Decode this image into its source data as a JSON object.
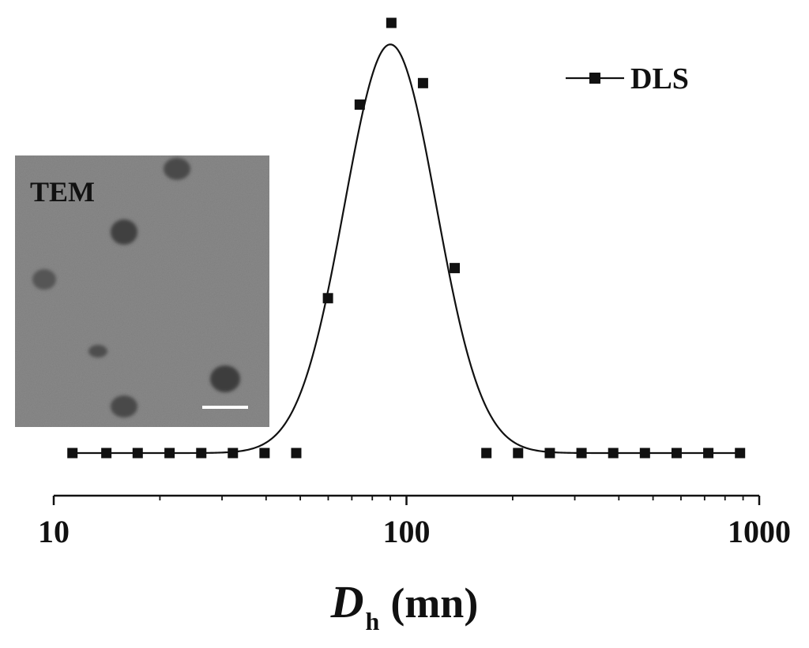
{
  "chart_data": {
    "type": "scatter",
    "xscale": "log",
    "xlim": [
      10,
      1000
    ],
    "xticks": [
      "10",
      "100",
      "1000"
    ],
    "xlabel": {
      "symbol": "D",
      "subscript": "h",
      "unit": "(mn)"
    },
    "legend": {
      "entries": [
        "DLS"
      ],
      "position": "top-right"
    },
    "series": [
      {
        "name": "DLS",
        "marker": "square",
        "color": "#111111",
        "x": [
          11.3,
          14.1,
          17.3,
          21.3,
          26.2,
          32.2,
          39.6,
          48.7,
          59.9,
          73.7,
          90.6,
          111.4,
          137.0,
          168.5,
          207.2,
          254.9,
          313.5,
          385.6,
          474.2,
          583.2,
          717.3,
          882.2
        ],
        "y": [
          0,
          0,
          0,
          0,
          0,
          0,
          0,
          0,
          36,
          81,
          100,
          86,
          43,
          0,
          0,
          0,
          0,
          0,
          0,
          0,
          0,
          0
        ]
      }
    ],
    "fit": {
      "type": "gaussian-log",
      "peak_x": 90,
      "peak_y": 95,
      "sigma_log10": 0.13
    }
  },
  "inset": {
    "label": "TEM",
    "icon": "tem-micrograph-image"
  },
  "colors": {
    "ink": "#111111",
    "inset_bg": "#8a8a8a",
    "background": "#ffffff"
  }
}
